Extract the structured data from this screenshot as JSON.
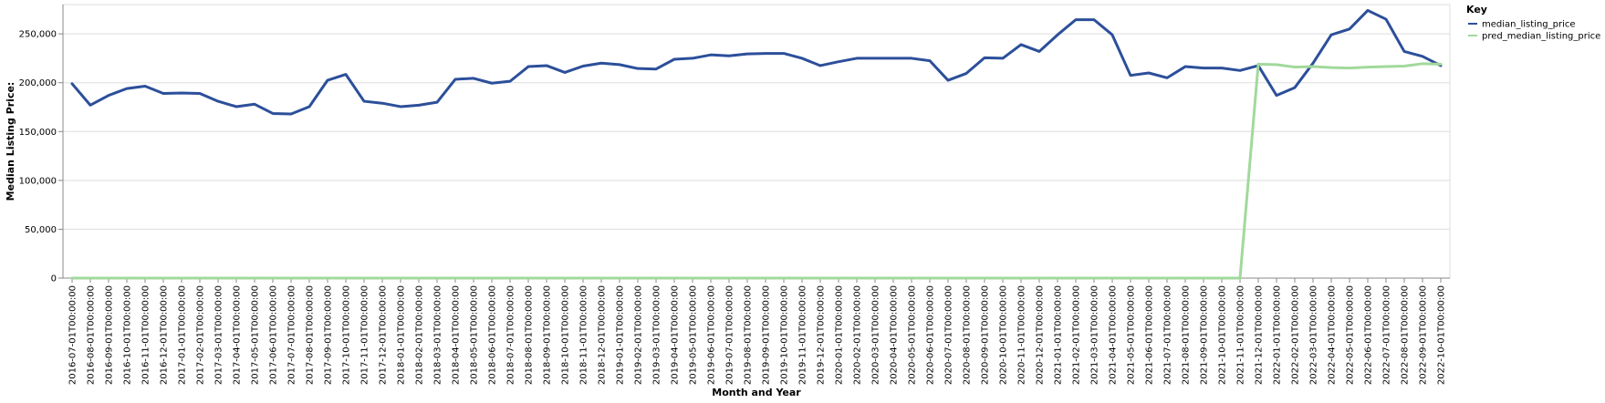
{
  "chart_data": {
    "type": "line",
    "xlabel": "Month and Year",
    "ylabel": "Median Listing Price:",
    "ylim": [
      0,
      280000
    ],
    "yticks": [
      0,
      50000,
      100000,
      150000,
      200000,
      250000
    ],
    "ytick_labels": [
      "0",
      "50,000",
      "100,000",
      "150,000",
      "200,000",
      "250,000"
    ],
    "grid": true,
    "legend": {
      "title": "Key",
      "placement": "top-right"
    },
    "x": [
      "2016-07-01T00:00:00",
      "2016-08-01T00:00:00",
      "2016-09-01T00:00:00",
      "2016-10-01T00:00:00",
      "2016-11-01T00:00:00",
      "2016-12-01T00:00:00",
      "2017-01-01T00:00:00",
      "2017-02-01T00:00:00",
      "2017-03-01T00:00:00",
      "2017-04-01T00:00:00",
      "2017-05-01T00:00:00",
      "2017-06-01T00:00:00",
      "2017-07-01T00:00:00",
      "2017-08-01T00:00:00",
      "2017-09-01T00:00:00",
      "2017-10-01T00:00:00",
      "2017-11-01T00:00:00",
      "2017-12-01T00:00:00",
      "2018-01-01T00:00:00",
      "2018-02-01T00:00:00",
      "2018-03-01T00:00:00",
      "2018-04-01T00:00:00",
      "2018-05-01T00:00:00",
      "2018-06-01T00:00:00",
      "2018-07-01T00:00:00",
      "2018-08-01T00:00:00",
      "2018-09-01T00:00:00",
      "2018-10-01T00:00:00",
      "2018-11-01T00:00:00",
      "2018-12-01T00:00:00",
      "2019-01-01T00:00:00",
      "2019-02-01T00:00:00",
      "2019-03-01T00:00:00",
      "2019-04-01T00:00:00",
      "2019-05-01T00:00:00",
      "2019-06-01T00:00:00",
      "2019-07-01T00:00:00",
      "2019-08-01T00:00:00",
      "2019-09-01T00:00:00",
      "2019-10-01T00:00:00",
      "2019-11-01T00:00:00",
      "2019-12-01T00:00:00",
      "2020-01-01T00:00:00",
      "2020-02-01T00:00:00",
      "2020-03-01T00:00:00",
      "2020-04-01T00:00:00",
      "2020-05-01T00:00:00",
      "2020-06-01T00:00:00",
      "2020-07-01T00:00:00",
      "2020-08-01T00:00:00",
      "2020-09-01T00:00:00",
      "2020-10-01T00:00:00",
      "2020-11-01T00:00:00",
      "2020-12-01T00:00:00",
      "2021-01-01T00:00:00",
      "2021-02-01T00:00:00",
      "2021-03-01T00:00:00",
      "2021-04-01T00:00:00",
      "2021-05-01T00:00:00",
      "2021-06-01T00:00:00",
      "2021-07-01T00:00:00",
      "2021-08-01T00:00:00",
      "2021-09-01T00:00:00",
      "2021-10-01T00:00:00",
      "2021-11-01T00:00:00",
      "2021-12-01T00:00:00",
      "2022-01-01T00:00:00",
      "2022-02-01T00:00:00",
      "2022-03-01T00:00:00",
      "2022-04-01T00:00:00",
      "2022-05-01T00:00:00",
      "2022-06-01T00:00:00",
      "2022-07-01T00:00:00",
      "2022-08-01T00:00:00",
      "2022-09-01T00:00:00",
      "2022-10-01T00:00:00"
    ],
    "series": [
      {
        "name": "median_listing_price",
        "color": "#2c4f9a",
        "values": [
          199000,
          177000,
          187000,
          194000,
          196500,
          189000,
          189500,
          189000,
          181000,
          175500,
          178000,
          168500,
          168000,
          175500,
          202500,
          208500,
          181000,
          179000,
          175500,
          177000,
          180000,
          203500,
          204500,
          199500,
          201500,
          216500,
          217500,
          210500,
          217000,
          220000,
          218500,
          214500,
          214000,
          224000,
          225000,
          228500,
          227500,
          229500,
          230000,
          230000,
          225000,
          217500,
          221500,
          225000,
          225000,
          225000,
          225000,
          222500,
          202500,
          209500,
          225500,
          225000,
          239000,
          232000,
          249000,
          264500,
          264500,
          249000,
          207500,
          210000,
          205000,
          216500,
          215000,
          215000,
          212500,
          217500,
          187000,
          195000,
          220000,
          249000,
          255000,
          274000,
          265000,
          232000,
          227000,
          217500
        ]
      },
      {
        "name": "pred_median_listing_price",
        "color": "#a1d99b",
        "values": [
          0,
          0,
          0,
          0,
          0,
          0,
          0,
          0,
          0,
          0,
          0,
          0,
          0,
          0,
          0,
          0,
          0,
          0,
          0,
          0,
          0,
          0,
          0,
          0,
          0,
          0,
          0,
          0,
          0,
          0,
          0,
          0,
          0,
          0,
          0,
          0,
          0,
          0,
          0,
          0,
          0,
          0,
          0,
          0,
          0,
          0,
          0,
          0,
          0,
          0,
          0,
          0,
          0,
          0,
          0,
          0,
          0,
          0,
          0,
          0,
          0,
          0,
          0,
          0,
          0,
          219000,
          218500,
          216000,
          216500,
          215500,
          215000,
          216000,
          216500,
          217000,
          219500,
          219000
        ]
      }
    ]
  }
}
